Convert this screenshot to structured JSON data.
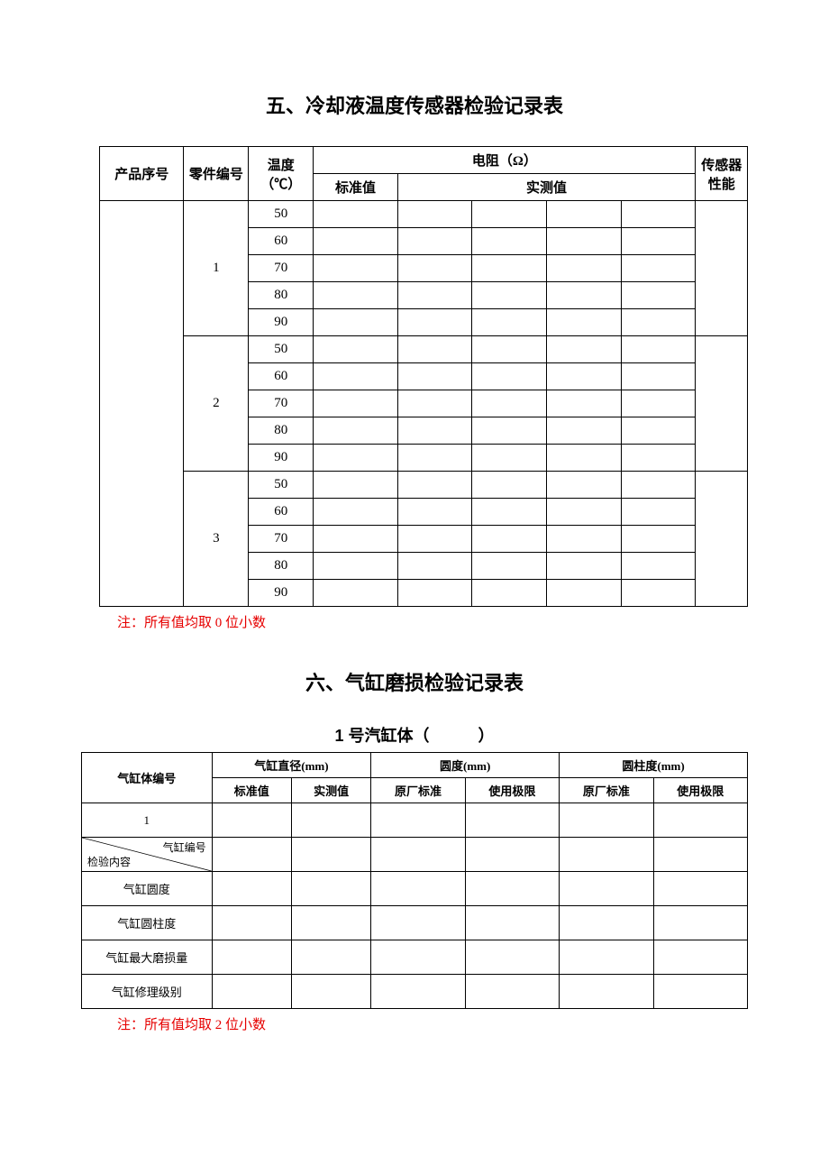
{
  "section5": {
    "title": "五、冷却液温度传感器检验记录表",
    "headers": {
      "product_serial": "产品序号",
      "part_no": "零件编号",
      "temperature": "温度（℃）",
      "resistance": "电阻（Ω）",
      "standard": "标准值",
      "measured": "实测值",
      "sensor_perf": "传感器性能"
    },
    "parts": [
      "1",
      "2",
      "3"
    ],
    "temps": [
      "50",
      "60",
      "70",
      "80",
      "90"
    ],
    "note": "注：所有值均取 0 位小数"
  },
  "section6": {
    "title": "六、气缸磨损检验记录表",
    "subtitle": "1 号汽缸体（　　　）",
    "headers": {
      "cyl_body_no": "气缸体编号",
      "diameter": "气缸直径(mm)",
      "roundness": "圆度(mm)",
      "cylindricity": "圆柱度(mm)",
      "standard": "标准值",
      "measured": "实测值",
      "factory_std": "原厂标准",
      "use_limit": "使用极限"
    },
    "diag_top": "气缸编号",
    "diag_bot": "检验内容",
    "rows": [
      "1",
      "气缸圆度",
      "气缸圆柱度",
      "气缸最大磨损量",
      "气缸修理级别"
    ],
    "note": "注：所有值均取 2 位小数"
  }
}
